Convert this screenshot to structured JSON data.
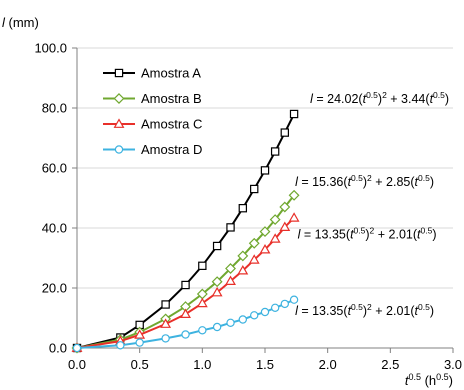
{
  "chart_data": {
    "type": "line",
    "y_axis_label": {
      "var": "l",
      "unit": " (mm)"
    },
    "x_axis_label": {
      "var": "t",
      "sup": "0.5",
      "unit_pre": " (h",
      "unit_sup": "0.5",
      "unit_post": ")"
    },
    "xlim": [
      0,
      3
    ],
    "ylim": [
      0,
      100
    ],
    "x_ticks": [
      0,
      0.5,
      1,
      1.5,
      2,
      2.5,
      3
    ],
    "x_tick_labels": [
      "0.0",
      "0.5",
      "1.0",
      "1.5",
      "2.0",
      "2.5",
      "3.0"
    ],
    "y_ticks": [
      0,
      20,
      40,
      60,
      80,
      100
    ],
    "y_tick_labels": [
      "0.0",
      "20.0",
      "40.0",
      "60.0",
      "80.0",
      "100.0"
    ],
    "gridlines": "horizontal",
    "legend_position": "top-left",
    "series": [
      {
        "name": "Amostra A",
        "color": "#000000",
        "marker": "square",
        "x": [
          0,
          0.346,
          0.5,
          0.707,
          0.866,
          1.0,
          1.118,
          1.225,
          1.323,
          1.414,
          1.5,
          1.581,
          1.658,
          1.732
        ],
        "y": [
          0,
          3.5,
          7.7,
          14.5,
          21.0,
          27.4,
          34.0,
          40.2,
          46.6,
          53.0,
          59.2,
          65.5,
          71.8,
          78.0
        ]
      },
      {
        "name": "Amostra B",
        "color": "#70a830",
        "marker": "diamond",
        "x": [
          0,
          0.346,
          0.5,
          0.707,
          0.866,
          1.0,
          1.118,
          1.225,
          1.323,
          1.414,
          1.5,
          1.581,
          1.658,
          1.732
        ],
        "y": [
          0,
          2.8,
          5.3,
          9.7,
          13.8,
          18.0,
          22.1,
          26.5,
          30.7,
          34.9,
          38.8,
          42.8,
          47.0,
          50.9
        ]
      },
      {
        "name": "Amostra C",
        "color": "#e8302a",
        "marker": "triangle",
        "x": [
          0,
          0.346,
          0.5,
          0.707,
          0.866,
          1.0,
          1.118,
          1.225,
          1.323,
          1.414,
          1.5,
          1.581,
          1.658,
          1.732
        ],
        "y": [
          0,
          2.3,
          4.4,
          8.0,
          11.3,
          14.9,
          18.5,
          22.3,
          25.8,
          29.4,
          32.8,
          36.4,
          40.3,
          43.4
        ]
      },
      {
        "name": "Amostra D",
        "color": "#3eb3e0",
        "marker": "circle",
        "x": [
          0,
          0.346,
          0.5,
          0.707,
          0.866,
          1.0,
          1.118,
          1.225,
          1.323,
          1.414,
          1.5,
          1.581,
          1.658,
          1.732
        ],
        "y": [
          0,
          0.9,
          1.8,
          3.2,
          4.5,
          5.9,
          7.0,
          8.4,
          9.5,
          10.9,
          12.0,
          13.4,
          14.7,
          16.1
        ]
      }
    ],
    "annotations": [
      {
        "a": "24.02",
        "b": "3.44",
        "anchor_x": 1.86,
        "anchor_y": 81.7
      },
      {
        "a": "15.36",
        "b": "2.85",
        "anchor_x": 1.74,
        "anchor_y": 54.0
      },
      {
        "a": "13.35",
        "b": "2.01",
        "anchor_x": 1.76,
        "anchor_y": 36.5
      },
      {
        "a": "13.35",
        "b": "2.01",
        "anchor_x": 1.74,
        "anchor_y": 11.0
      }
    ]
  }
}
